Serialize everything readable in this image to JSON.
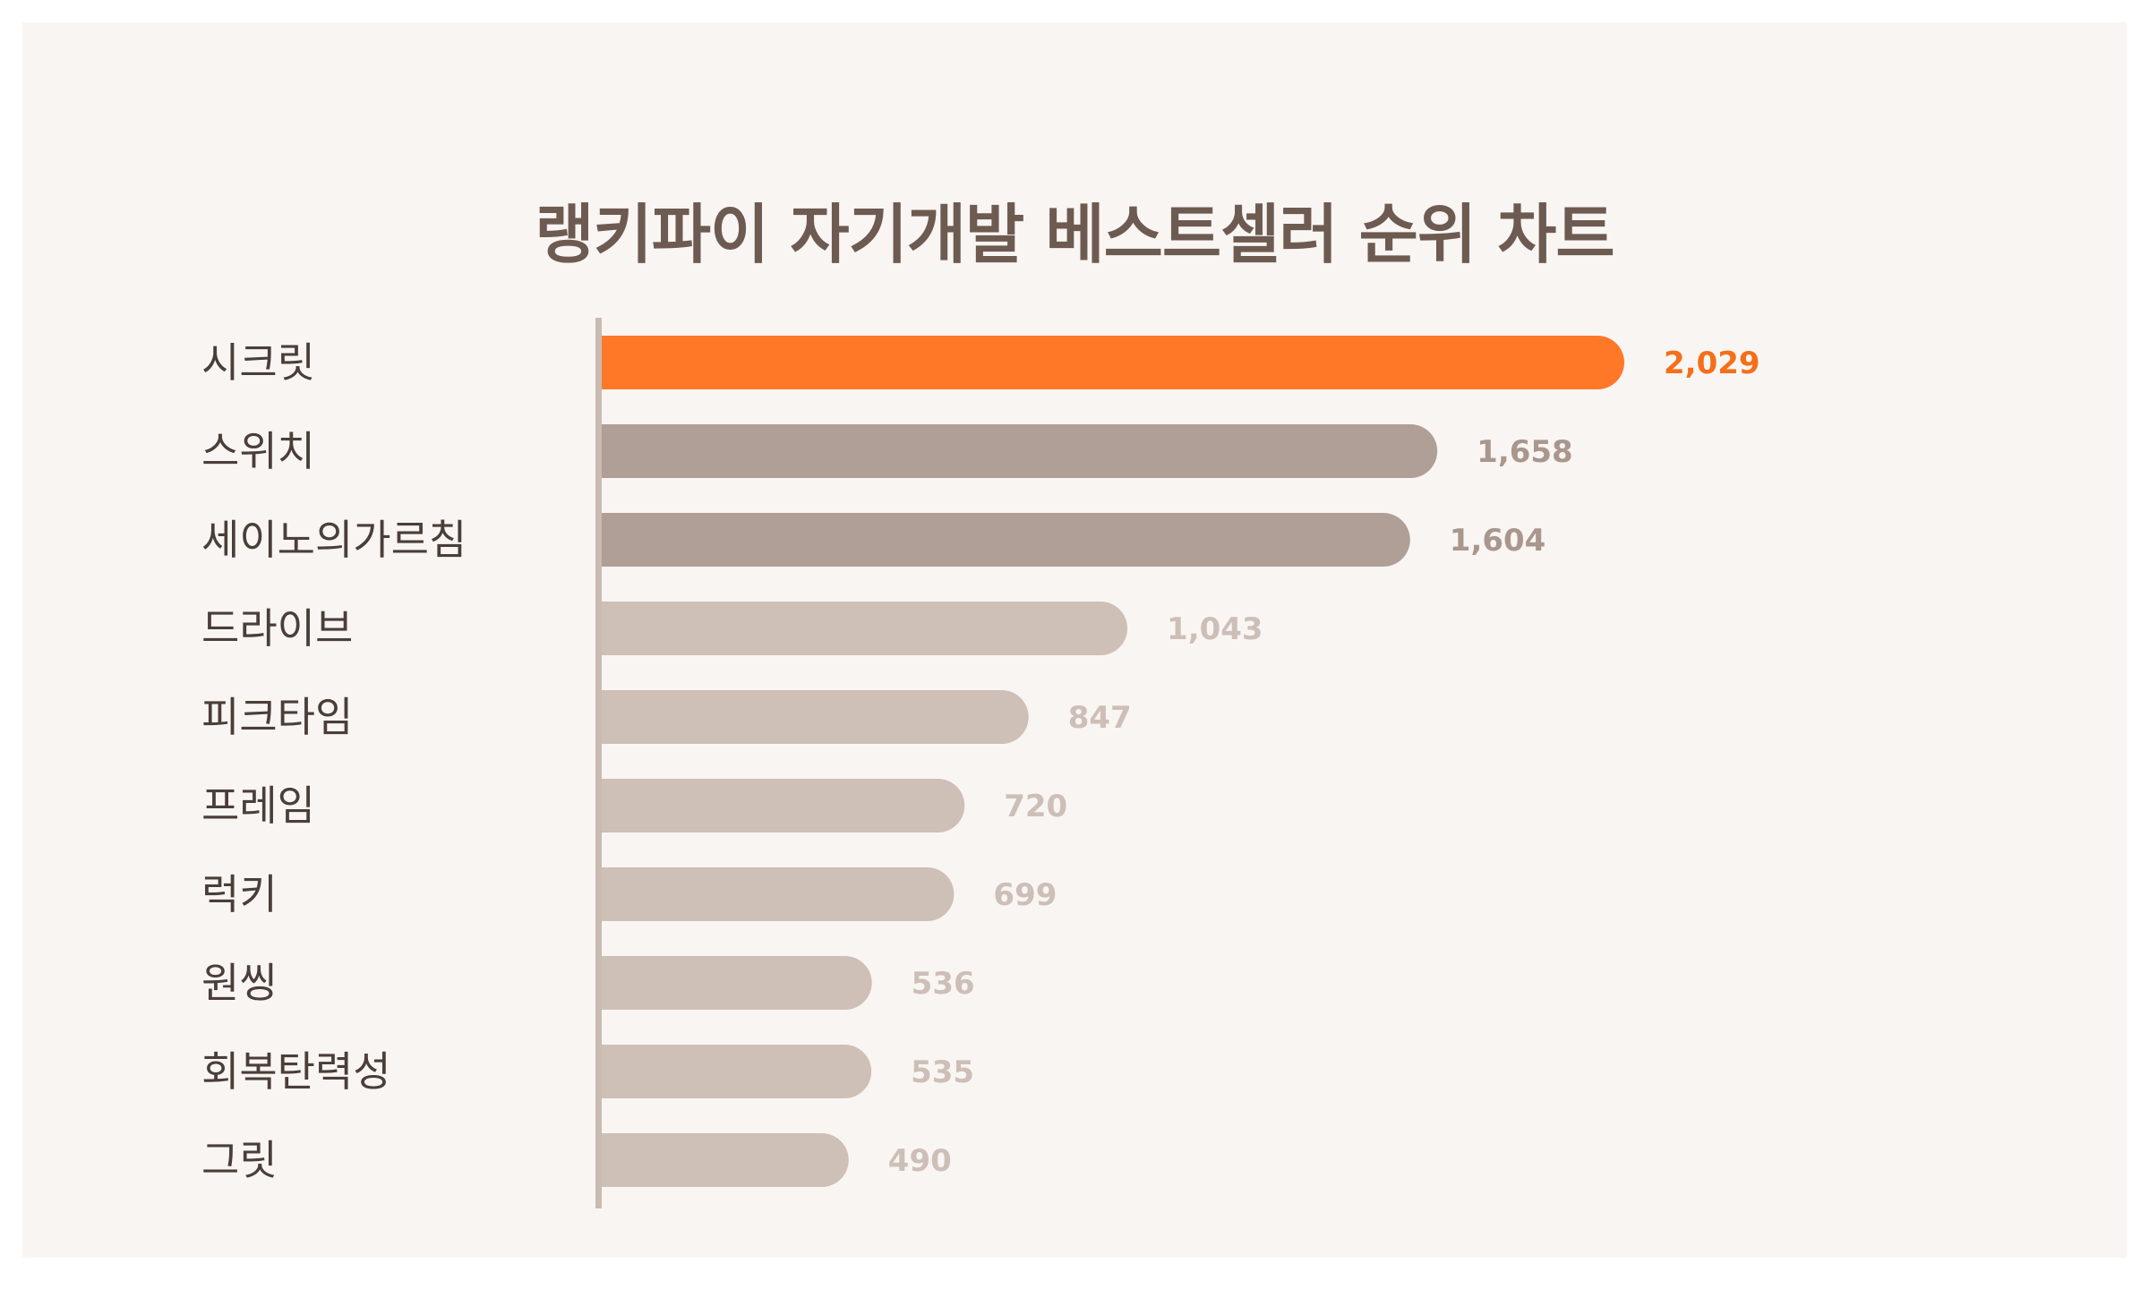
{
  "chart_data": {
    "type": "bar",
    "orientation": "horizontal",
    "title": "랭키파이 자기개발 베스트셀러 순위 차트",
    "categories": [
      "시크릿",
      "스위치",
      "세이노의가르침",
      "드라이브",
      "피크타임",
      "프레임",
      "럭키",
      "원씽",
      "회복탄력성",
      "그릿"
    ],
    "values": [
      2029,
      1658,
      1604,
      1043,
      847,
      720,
      699,
      536,
      535,
      490
    ],
    "value_labels": [
      "2,029",
      "1,658",
      "1,604",
      "1,043",
      "847",
      "720",
      "699",
      "536",
      "535",
      "490"
    ],
    "xlim": [
      0,
      2029
    ],
    "grid": false,
    "legend": "none",
    "colors": {
      "highlight_bar": "#ff7828",
      "highlight_label": "#f46f1a",
      "tier2_bar": "#b09f97",
      "tier2_label": "#a9978d",
      "tier3_bar": "#cebfb7",
      "tier3_label": "#cdbfb7",
      "axis": "#c9bab2",
      "title": "#6d5b52",
      "background": "#f9f5f3"
    }
  }
}
